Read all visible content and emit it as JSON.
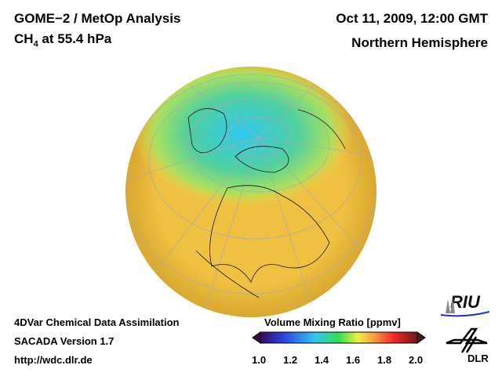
{
  "header": {
    "title": "GOME−2 / MetOp Analysis",
    "species": "CH",
    "species_sub": "4",
    "level": " at 55.4 hPa",
    "datetime": "Oct 11, 2009, 12:00 GMT",
    "region": "Northern Hemisphere"
  },
  "footer": {
    "line1": "4DVar Chemical Data Assimilation",
    "line2": "SACADA Version 1.7",
    "line3": "http://wdc.dlr.de"
  },
  "colorbar": {
    "title": "Volume Mixing Ratio [ppmv]",
    "ticks": [
      "1.0",
      "1.2",
      "1.4",
      "1.6",
      "1.8",
      "2.0"
    ],
    "colors": [
      "#3a0a5a",
      "#2a40e0",
      "#30c8f0",
      "#30e050",
      "#f0f040",
      "#f8a040",
      "#f02828",
      "#701818"
    ]
  },
  "logos": {
    "riu": "RIU",
    "dlr": "DLR"
  }
}
